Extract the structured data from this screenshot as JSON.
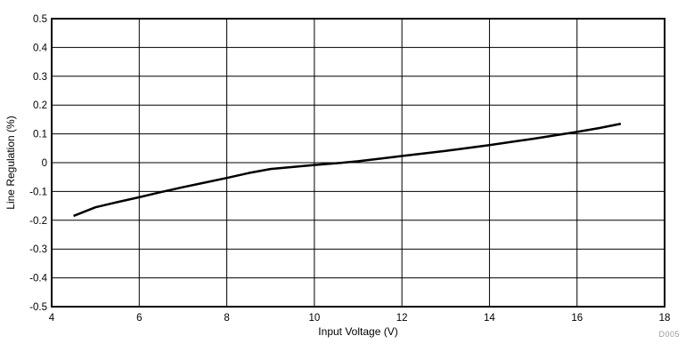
{
  "chart_data": {
    "type": "line",
    "title": "",
    "xlabel": "Input Voltage (V)",
    "ylabel": "Line Regulation (%)",
    "xlim": [
      4,
      18
    ],
    "ylim": [
      -0.5,
      0.5
    ],
    "xticks": [
      4,
      6,
      8,
      10,
      12,
      14,
      16,
      18
    ],
    "yticks": [
      -0.5,
      -0.4,
      -0.3,
      -0.2,
      -0.1,
      0,
      0.1,
      0.2,
      0.3,
      0.4,
      0.5
    ],
    "grid": true,
    "legend_visible": false,
    "series": [
      {
        "name": "line-regulation",
        "color": "#000000",
        "x": [
          4.5,
          5,
          5.5,
          6,
          6.5,
          7,
          7.5,
          8,
          8.5,
          9,
          9.5,
          10,
          10.5,
          11,
          11.5,
          12,
          12.5,
          13,
          13.5,
          14,
          14.5,
          15,
          15.5,
          16,
          16.5,
          17
        ],
        "y": [
          -0.185,
          -0.155,
          -0.137,
          -0.12,
          -0.102,
          -0.085,
          -0.069,
          -0.053,
          -0.036,
          -0.022,
          -0.015,
          -0.008,
          -0.002,
          0.005,
          0.014,
          0.023,
          0.032,
          0.041,
          0.051,
          0.061,
          0.072,
          0.083,
          0.095,
          0.107,
          0.12,
          0.135
        ]
      }
    ],
    "watermark": "D005"
  },
  "colors": {
    "background": "#ffffff",
    "axis_border": "#000000",
    "gridline": "#000000",
    "tick_text": "#000000",
    "series_line": "#000000",
    "watermark_text": "#9a9a9a"
  }
}
